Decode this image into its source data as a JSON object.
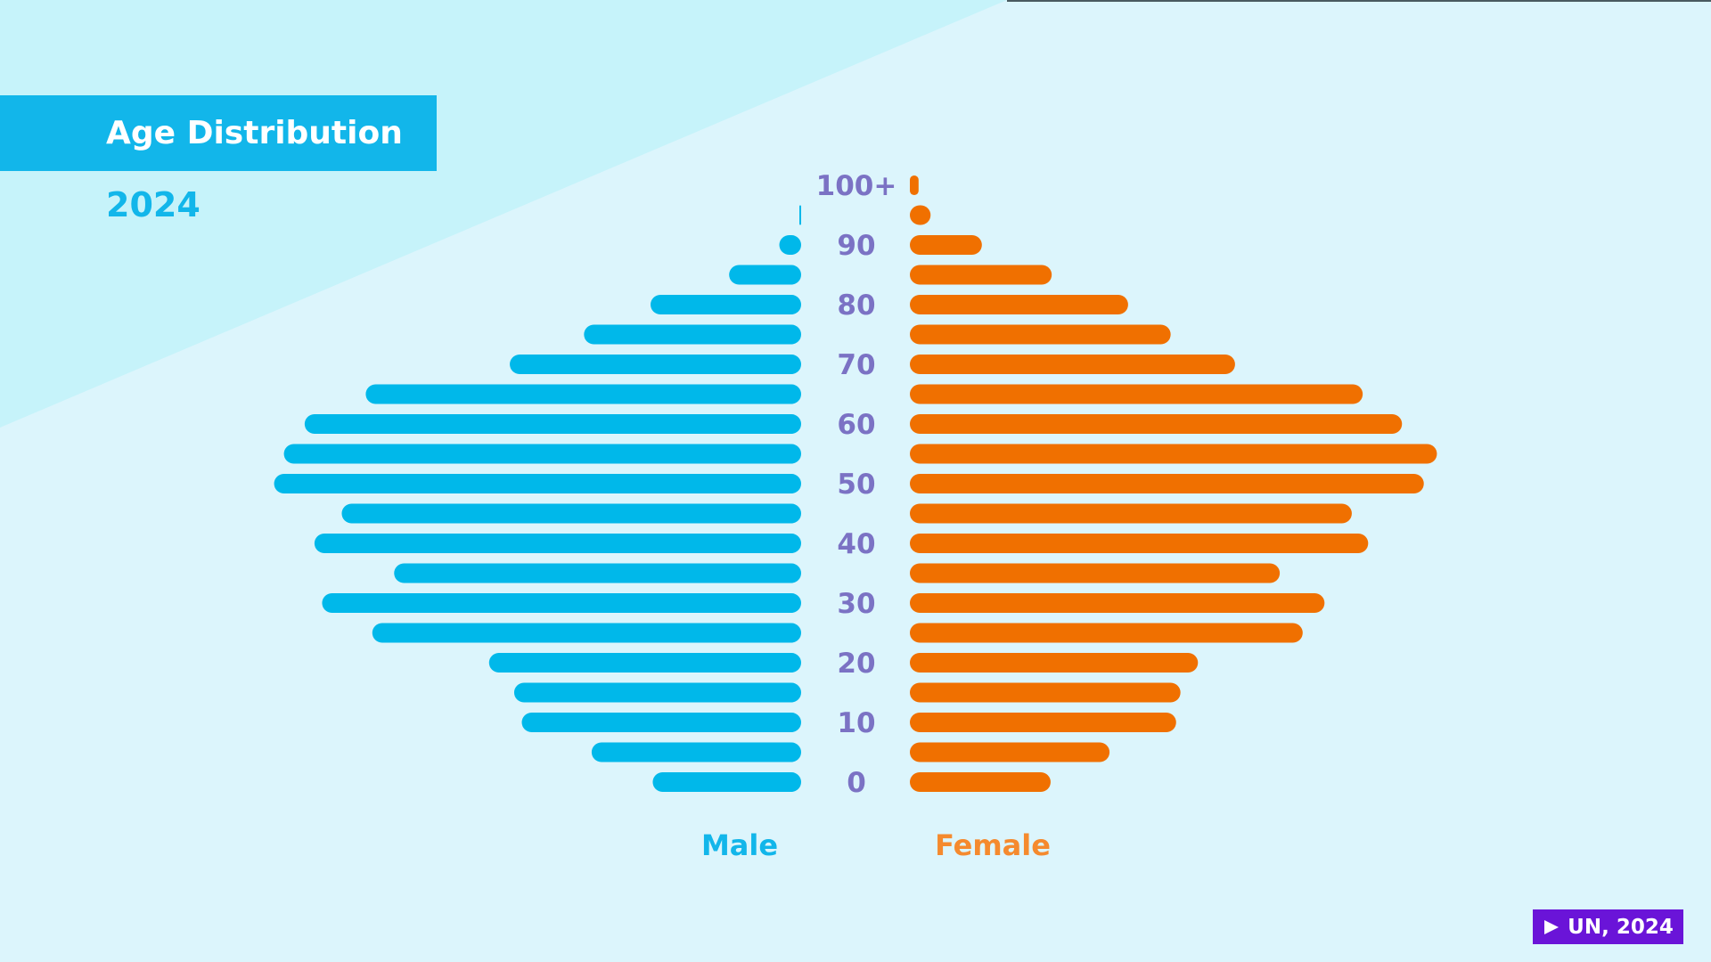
{
  "title": "Age Distribution",
  "year": "2024",
  "source_badge": {
    "icon": "play-icon",
    "label": "UN, 2024"
  },
  "colors": {
    "male": "#00b8ea",
    "female": "#f07000",
    "axis_label": "#7b72c4",
    "title_bg": "#12b6ea"
  },
  "chart_data": {
    "type": "bar",
    "orientation": "horizontal-pyramid",
    "title": "Age Distribution",
    "subtitle": "2024",
    "unit": "relative population (unlabeled)",
    "age_groups": [
      "100+",
      "95",
      "90",
      "85",
      "80",
      "75",
      "70",
      "65",
      "60",
      "55",
      "50",
      "45",
      "40",
      "35",
      "30",
      "25",
      "20",
      "15",
      "10",
      "5",
      "0"
    ],
    "tick_labels": [
      "100+",
      "90",
      "80",
      "70",
      "60",
      "50",
      "40",
      "30",
      "20",
      "10",
      "0"
    ],
    "series": [
      {
        "name": "Male",
        "values": [
          0,
          1,
          20,
          66,
          138,
          199,
          267,
          399,
          455,
          474,
          483,
          421,
          446,
          373,
          439,
          393,
          286,
          263,
          256,
          192,
          136
        ]
      },
      {
        "name": "Female",
        "values": [
          8,
          19,
          66,
          130,
          200,
          239,
          298,
          415,
          451,
          483,
          471,
          405,
          420,
          339,
          380,
          360,
          264,
          248,
          244,
          183,
          129
        ]
      }
    ],
    "legend": [
      "Male",
      "Female"
    ],
    "legend_placement": "bottom"
  }
}
